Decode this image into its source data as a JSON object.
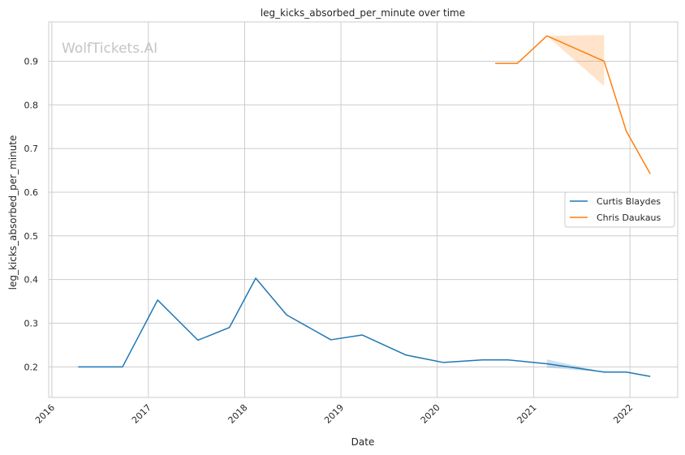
{
  "chart_data": {
    "type": "line",
    "title": "leg_kicks_absorbed_per_minute over time",
    "xlabel": "Date",
    "ylabel": "leg_kicks_absorbed_per_minute",
    "watermark": "WolfTickets.AI",
    "x_ticks": [
      "2016",
      "2017",
      "2018",
      "2019",
      "2020",
      "2021",
      "2022"
    ],
    "y_ticks": [
      "0.2",
      "0.3",
      "0.4",
      "0.5",
      "0.6",
      "0.7",
      "0.8",
      "0.9"
    ],
    "xlim": [
      "2015-12-20",
      "2022-07-01"
    ],
    "ylim": [
      0.13,
      0.99
    ],
    "grid": true,
    "legend_position": "center-right",
    "series": [
      {
        "name": "Curtis Blaydes",
        "color": "#1f77b4",
        "points": [
          {
            "x": "2016-04-10",
            "y": 0.2
          },
          {
            "x": "2016-09-25",
            "y": 0.2
          },
          {
            "x": "2017-02-05",
            "y": 0.353
          },
          {
            "x": "2017-07-08",
            "y": 0.261
          },
          {
            "x": "2017-11-04",
            "y": 0.29
          },
          {
            "x": "2018-02-12",
            "y": 0.403
          },
          {
            "x": "2018-06-09",
            "y": 0.319
          },
          {
            "x": "2018-11-24",
            "y": 0.262
          },
          {
            "x": "2019-03-23",
            "y": 0.273
          },
          {
            "x": "2019-09-05",
            "y": 0.227
          },
          {
            "x": "2020-01-25",
            "y": 0.21
          },
          {
            "x": "2020-06-20",
            "y": 0.216
          },
          {
            "x": "2020-09-26",
            "y": 0.216
          },
          {
            "x": "2021-02-20",
            "y": 0.207
          },
          {
            "x": "2021-09-25",
            "y": 0.188
          },
          {
            "x": "2021-12-18",
            "y": 0.188
          },
          {
            "x": "2022-03-19",
            "y": 0.178
          }
        ],
        "band": [
          {
            "x": "2021-02-20",
            "lo": 0.198,
            "hi": 0.217
          },
          {
            "x": "2021-09-25",
            "lo": 0.188,
            "hi": 0.188
          }
        ]
      },
      {
        "name": "Chris Daukaus",
        "color": "#ff7f0e",
        "points": [
          {
            "x": "2020-08-08",
            "y": 0.895
          },
          {
            "x": "2020-10-31",
            "y": 0.895
          },
          {
            "x": "2021-02-20",
            "y": 0.958
          },
          {
            "x": "2021-09-25",
            "y": 0.9
          },
          {
            "x": "2021-12-18",
            "y": 0.74
          },
          {
            "x": "2022-03-19",
            "y": 0.642
          }
        ],
        "band": [
          {
            "x": "2021-02-20",
            "lo": 0.958,
            "hi": 0.958
          },
          {
            "x": "2021-09-25",
            "lo": 0.843,
            "hi": 0.96
          }
        ]
      }
    ]
  }
}
